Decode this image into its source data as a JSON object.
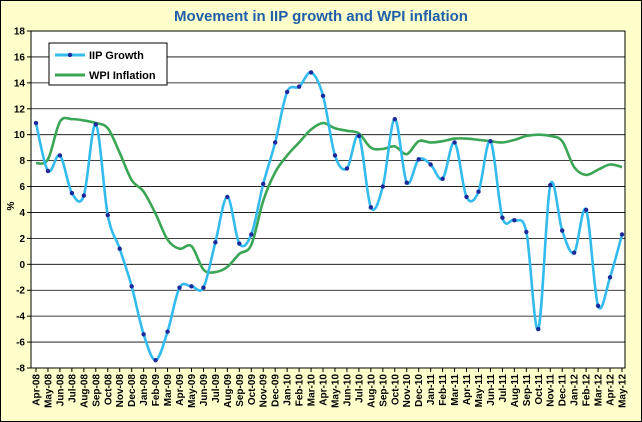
{
  "chart_data": {
    "type": "line",
    "title": "Movement in IIP growth and WPI inflation",
    "xlabel": "",
    "ylabel": "%",
    "ylim": [
      -8,
      18
    ],
    "yticks": [
      -8,
      -6,
      -4,
      -2,
      0,
      2,
      4,
      6,
      8,
      10,
      12,
      14,
      16,
      18
    ],
    "grid": true,
    "legend_position": "top-left",
    "categories": [
      "Apr-08",
      "May-08",
      "Jun-08",
      "Jul-08",
      "Aug-08",
      "Sep-08",
      "Oct-08",
      "Nov-08",
      "Dec-08",
      "Jan-09",
      "Feb-09",
      "Mar-09",
      "Apr-09",
      "May-09",
      "Jun-09",
      "Jul-09",
      "Aug-09",
      "Sep-09",
      "Oct-09",
      "Nov-09",
      "Dec-09",
      "Jan-10",
      "Feb-10",
      "Mar-10",
      "Apr-10",
      "May-10",
      "Jun-10",
      "Jul-10",
      "Aug-10",
      "Sep-10",
      "Oct-10",
      "Nov-10",
      "Dec-10",
      "Jan-11",
      "Feb-11",
      "Mar-11",
      "Apr-11",
      "May-11",
      "Jun-11",
      "Jul-11",
      "Aug-11",
      "Sep-11",
      "Oct-11",
      "Nov-11",
      "Dec-11",
      "Jan-12",
      "Feb-12",
      "Mar-12",
      "Apr-12",
      "May-12"
    ],
    "series": [
      {
        "name": "IIP Growth",
        "color": "#33bbee",
        "markers": true,
        "values": [
          10.9,
          7.2,
          8.4,
          5.5,
          5.3,
          10.8,
          3.8,
          1.2,
          -1.7,
          -5.4,
          -7.4,
          -5.2,
          -1.8,
          -1.7,
          -1.8,
          1.7,
          5.2,
          1.6,
          2.3,
          6.2,
          9.4,
          13.3,
          13.7,
          14.8,
          13.0,
          8.4,
          7.4,
          9.9,
          4.4,
          6.0,
          11.2,
          6.3,
          8.1,
          7.7,
          6.6,
          9.4,
          5.2,
          5.6,
          9.5,
          3.6,
          3.4,
          2.5,
          -5.0,
          6.1,
          2.6,
          0.9,
          4.2,
          -3.2,
          -1.0,
          2.3
        ]
      },
      {
        "name": "WPI Inflation",
        "color": "#3aa655",
        "markers": false,
        "values": [
          7.8,
          8.1,
          11.0,
          11.2,
          11.1,
          10.9,
          10.5,
          8.6,
          6.5,
          5.6,
          3.9,
          1.9,
          1.2,
          1.4,
          -0.4,
          -0.6,
          -0.2,
          0.8,
          1.5,
          4.9,
          7.1,
          8.4,
          9.4,
          10.4,
          10.9,
          10.5,
          10.3,
          10.1,
          9.0,
          8.9,
          9.1,
          8.5,
          9.5,
          9.4,
          9.5,
          9.7,
          9.7,
          9.6,
          9.5,
          9.4,
          9.6,
          9.9,
          10.0,
          9.9,
          9.5,
          7.5,
          6.9,
          7.3,
          7.7,
          7.5
        ]
      }
    ]
  }
}
